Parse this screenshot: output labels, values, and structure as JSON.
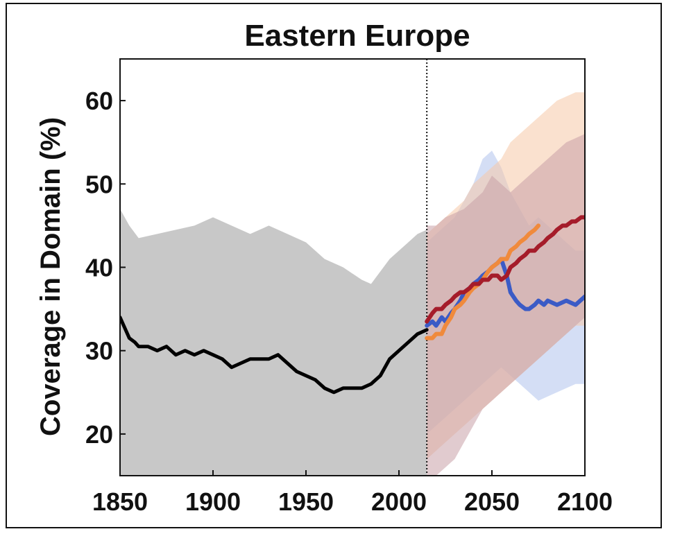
{
  "chart_data": {
    "type": "line",
    "title": "Eastern Europe",
    "xlabel": "",
    "ylabel": "Coverage in Domain (%)",
    "xlim": [
      1850,
      2100
    ],
    "ylim": [
      15,
      65
    ],
    "xticks": [
      1850,
      1900,
      1950,
      2000,
      2050,
      2100
    ],
    "yticks": [
      20,
      30,
      40,
      50,
      60
    ],
    "grid": false,
    "legend": "none",
    "reference_line": {
      "x": 2015,
      "style": "dotted"
    },
    "bands": [
      {
        "color": "#c8c8c8",
        "opacity": 1.0,
        "x": [
          1850,
          1855,
          1860,
          1870,
          1880,
          1890,
          1900,
          1910,
          1920,
          1930,
          1940,
          1950,
          1960,
          1970,
          1980,
          1985,
          1990,
          1995,
          2000,
          2005,
          2010,
          2015
        ],
        "upper": [
          47,
          45,
          43.5,
          44,
          44.5,
          45,
          46,
          45,
          44,
          45,
          44,
          43,
          41,
          40,
          38.5,
          38,
          39.5,
          41,
          42,
          43,
          44,
          44.5
        ],
        "lower": [
          15,
          15,
          15,
          15,
          15,
          15,
          15,
          15,
          15,
          15,
          15,
          15,
          15,
          15,
          15,
          15,
          15,
          15,
          15,
          15,
          15,
          15
        ]
      },
      {
        "color": "#b8c8ee",
        "opacity": 0.6,
        "x": [
          2015,
          2020,
          2025,
          2030,
          2035,
          2040,
          2045,
          2050,
          2055,
          2060,
          2065,
          2070,
          2075,
          2080,
          2085,
          2090,
          2095,
          2100
        ],
        "upper": [
          43,
          44,
          45,
          46,
          48,
          50,
          53,
          54,
          52,
          49,
          47,
          45,
          46,
          45,
          44,
          43,
          42,
          42
        ],
        "lower": [
          20,
          21,
          22,
          23,
          24,
          25,
          26,
          27,
          28,
          27,
          26,
          25,
          24,
          24.5,
          25,
          25.5,
          26,
          26
        ]
      },
      {
        "color": "#f6c9a8",
        "opacity": 0.55,
        "x": [
          2015,
          2020,
          2025,
          2030,
          2035,
          2040,
          2045,
          2050,
          2055,
          2060,
          2065,
          2070,
          2075,
          2080,
          2085,
          2090,
          2095,
          2100
        ],
        "upper": [
          44,
          45,
          46,
          47,
          48,
          50,
          51,
          52,
          53,
          55,
          56,
          57,
          58,
          59,
          60,
          60.5,
          61,
          61
        ],
        "lower": [
          17,
          18,
          19,
          20,
          21,
          22,
          23,
          24,
          25,
          26,
          27,
          28,
          29,
          30,
          31,
          32,
          33,
          33
        ]
      },
      {
        "color": "#c9a0a8",
        "opacity": 0.55,
        "x": [
          2015,
          2020,
          2025,
          2030,
          2035,
          2040,
          2045,
          2050,
          2055,
          2060,
          2065,
          2070,
          2075,
          2080,
          2085,
          2090,
          2095,
          2100
        ],
        "upper": [
          45,
          45,
          46,
          46.5,
          47,
          48,
          49,
          51,
          50,
          49,
          50,
          51,
          52,
          53,
          54,
          55,
          55.5,
          56
        ],
        "lower": [
          15,
          15,
          16,
          17,
          19,
          21,
          23,
          24,
          25,
          26,
          27,
          28,
          29,
          30,
          31,
          32,
          33,
          34
        ]
      }
    ],
    "series": [
      {
        "color": "#000000",
        "width": 5,
        "x": [
          1850,
          1852,
          1855,
          1858,
          1860,
          1865,
          1870,
          1875,
          1880,
          1885,
          1890,
          1895,
          1900,
          1905,
          1910,
          1915,
          1920,
          1925,
          1930,
          1935,
          1940,
          1945,
          1950,
          1955,
          1960,
          1965,
          1970,
          1975,
          1980,
          1985,
          1990,
          1995,
          2000,
          2005,
          2010,
          2015
        ],
        "y": [
          34,
          33,
          31.5,
          31,
          30.5,
          30.5,
          30,
          30.5,
          29.5,
          30,
          29.5,
          30,
          29.5,
          29,
          28,
          28.5,
          29,
          29,
          29,
          29.5,
          28.5,
          27.5,
          27,
          26.5,
          25.5,
          25,
          25.5,
          25.5,
          25.5,
          26,
          27,
          29,
          30,
          31,
          32,
          32.5
        ]
      },
      {
        "color": "#3b5bc6",
        "width": 6,
        "x": [
          2015,
          2018,
          2020,
          2023,
          2025,
          2028,
          2030,
          2033,
          2035,
          2038,
          2040,
          2043,
          2045,
          2048,
          2050,
          2053,
          2055,
          2058,
          2060,
          2063,
          2065,
          2068,
          2070,
          2073,
          2075,
          2078,
          2080,
          2085,
          2090,
          2095,
          2100
        ],
        "y": [
          33,
          33.5,
          33,
          34,
          33.5,
          34.5,
          35,
          36,
          37,
          37.5,
          38,
          38.5,
          39,
          39.5,
          40,
          40.5,
          41,
          39,
          37,
          36,
          35.5,
          35,
          35,
          35.5,
          36,
          35.5,
          36,
          35.5,
          36,
          35.5,
          36.5
        ]
      },
      {
        "color": "#f08a3c",
        "width": 6,
        "x": [
          2015,
          2018,
          2020,
          2023,
          2025,
          2028,
          2030,
          2033,
          2035,
          2038,
          2040,
          2043,
          2045,
          2048,
          2050,
          2053,
          2055,
          2058,
          2060,
          2063,
          2065,
          2068,
          2070,
          2073,
          2075
        ],
        "y": [
          31.5,
          31.5,
          32,
          32,
          33,
          34,
          35,
          35.5,
          36,
          37,
          37.5,
          38,
          38.5,
          39.5,
          40,
          40.5,
          41,
          41,
          42,
          42.5,
          43,
          43.5,
          44,
          44.5,
          45
        ]
      },
      {
        "color": "#a51c2a",
        "width": 6,
        "x": [
          2015,
          2018,
          2020,
          2023,
          2025,
          2028,
          2030,
          2033,
          2035,
          2038,
          2040,
          2043,
          2045,
          2048,
          2050,
          2053,
          2055,
          2058,
          2060,
          2063,
          2065,
          2068,
          2070,
          2073,
          2075,
          2078,
          2080,
          2083,
          2085,
          2088,
          2090,
          2093,
          2095,
          2098,
          2100
        ],
        "y": [
          33.5,
          34.5,
          35,
          35,
          35.5,
          36,
          36.5,
          37,
          37,
          37.5,
          38,
          38,
          38.5,
          38.5,
          39,
          39,
          38.5,
          39,
          40,
          40.5,
          41,
          41.5,
          42,
          42,
          42.5,
          43,
          43.5,
          44,
          44.5,
          45,
          45,
          45.5,
          45.5,
          46,
          46
        ]
      }
    ]
  }
}
